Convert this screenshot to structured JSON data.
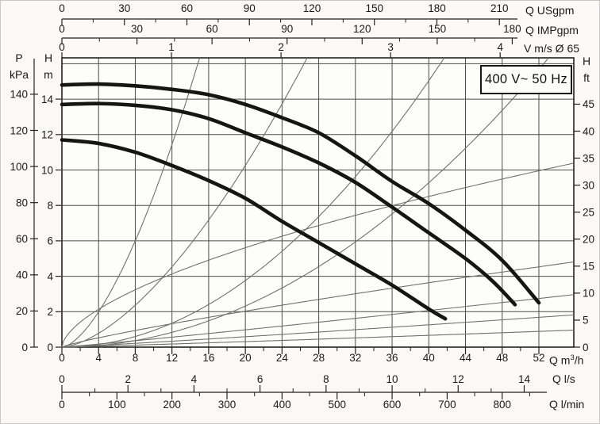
{
  "badge": "400 V~ 50 Hz",
  "colors": {
    "curve": "#151515",
    "grid": "#4c4c4c",
    "border": "#222222",
    "reference": "#707070",
    "text": "#1a1a1a",
    "plot_fill": "#fdfdfc",
    "background": "#faf9f7"
  },
  "axes": {
    "left_pressure": {
      "label_lines": [
        "P",
        "kPa"
      ],
      "ticks": [
        0,
        20,
        40,
        60,
        80,
        100,
        120,
        140
      ],
      "m_per_unit": 0.10197
    },
    "left_head": {
      "label_lines": [
        "H",
        "m"
      ],
      "ticks": [
        0,
        2,
        4,
        6,
        8,
        10,
        12,
        14
      ],
      "m_per_unit": 1
    },
    "right_head_ft": {
      "label_lines": [
        "H",
        "ft"
      ],
      "ticks": [
        0,
        5,
        10,
        15,
        20,
        25,
        30,
        35,
        40,
        45
      ],
      "m_per_unit": 0.3048
    },
    "top_usgpm": {
      "label": "Q USgpm",
      "ticks": [
        0,
        30,
        60,
        90,
        120,
        150,
        180,
        210
      ],
      "minor_step": 15,
      "m3h_per_unit": 0.22712
    },
    "top_impgpm": {
      "label": "Q IMPgpm",
      "ticks": [
        0,
        30,
        60,
        90,
        120,
        150,
        180
      ],
      "minor_step": 15,
      "m3h_per_unit": 0.27277
    },
    "top_velocity": {
      "label": "V m/s Ø 65",
      "ticks": [
        0,
        1,
        2,
        3,
        4
      ],
      "m3h_per_unit": 11.945
    },
    "bottom_m3h": {
      "label_parts": [
        "Q m",
        "3",
        "/h"
      ],
      "ticks": [
        0,
        4,
        8,
        12,
        16,
        20,
        24,
        28,
        32,
        36,
        40,
        44,
        48,
        52
      ],
      "minor_step": 2,
      "m3h_per_unit": 1
    },
    "bottom_ls": {
      "label": "Q l/s",
      "ticks": [
        0,
        2,
        4,
        6,
        8,
        10,
        12,
        14
      ],
      "minor_step": 1,
      "m3h_per_unit": 3.6
    },
    "bottom_lmin": {
      "label": "Q l/min",
      "ticks": [
        0,
        100,
        200,
        300,
        400,
        500,
        600,
        700,
        800
      ],
      "minor_step": 50,
      "m3h_per_unit": 0.06
    }
  },
  "chart_data": {
    "type": "line",
    "xlabel": "Q m³/h",
    "ylabel": "H m",
    "xlim": [
      0,
      55.81
    ],
    "ylim": [
      0,
      16.33
    ],
    "grid": {
      "x_step": 4,
      "y_step": 2,
      "visible": true
    },
    "series": [
      {
        "name": "pump-curve-high",
        "points": [
          [
            0,
            14.8
          ],
          [
            4,
            14.85
          ],
          [
            8,
            14.75
          ],
          [
            12,
            14.55
          ],
          [
            16,
            14.25
          ],
          [
            20,
            13.7
          ],
          [
            24,
            12.95
          ],
          [
            28,
            12.1
          ],
          [
            32,
            10.8
          ],
          [
            36,
            9.35
          ],
          [
            40,
            8.1
          ],
          [
            44,
            6.6
          ],
          [
            48,
            4.9
          ],
          [
            52,
            2.5
          ]
        ]
      },
      {
        "name": "pump-curve-mid",
        "points": [
          [
            0,
            13.7
          ],
          [
            4,
            13.75
          ],
          [
            8,
            13.65
          ],
          [
            12,
            13.4
          ],
          [
            16,
            12.9
          ],
          [
            20,
            12.1
          ],
          [
            24,
            11.3
          ],
          [
            28,
            10.4
          ],
          [
            32,
            9.3
          ],
          [
            36,
            7.9
          ],
          [
            40,
            6.45
          ],
          [
            44,
            5.0
          ],
          [
            47,
            3.7
          ],
          [
            49.4,
            2.4
          ]
        ]
      },
      {
        "name": "pump-curve-low",
        "points": [
          [
            0,
            11.7
          ],
          [
            4,
            11.5
          ],
          [
            8,
            11.0
          ],
          [
            12,
            10.25
          ],
          [
            16,
            9.4
          ],
          [
            20,
            8.4
          ],
          [
            24,
            7.1
          ],
          [
            28,
            5.9
          ],
          [
            32,
            4.7
          ],
          [
            36,
            3.5
          ],
          [
            40,
            2.15
          ],
          [
            41.8,
            1.6
          ]
        ]
      }
    ],
    "reference_curves": [
      {
        "k": 0.22,
        "p": 1.59
      },
      {
        "k": 0.085,
        "p": 1.6
      },
      {
        "k": 0.0094,
        "p": 2
      },
      {
        "k": 0.0058,
        "p": 2
      },
      {
        "k": 0.93,
        "p": 0.6
      },
      {
        "k": 0.164,
        "p": 0.84
      },
      {
        "k": 0.0385,
        "p": 1.08
      },
      {
        "k": 0.0218,
        "p": 1.1
      },
      {
        "k": 0.0115,
        "p": 1.1
      }
    ]
  }
}
